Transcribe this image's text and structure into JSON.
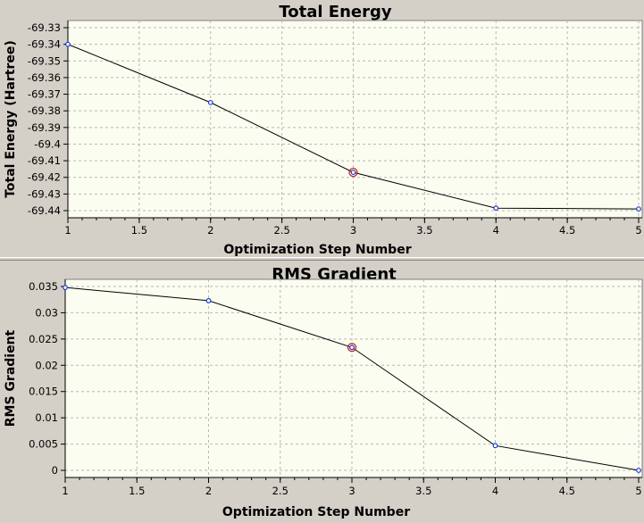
{
  "chart_data": [
    {
      "type": "line",
      "title": "Total Energy",
      "xlabel": "Optimization Step Number",
      "ylabel": "Total Energy (Hartree)",
      "x": [
        1,
        2,
        3,
        4,
        5
      ],
      "y": [
        -69.34,
        -69.375,
        -69.417,
        -69.4385,
        -69.439
      ],
      "highlight_index": 2,
      "xlim": [
        1,
        5
      ],
      "ylim": [
        -69.44,
        -69.33
      ],
      "x_ticks": [
        "1",
        "1.5",
        "2",
        "2.5",
        "3",
        "3.5",
        "4",
        "4.5",
        "5"
      ],
      "y_ticks": [
        "-69.33",
        "-69.34",
        "-69.35",
        "-69.36",
        "-69.37",
        "-69.38",
        "-69.39",
        "-69.4",
        "-69.41",
        "-69.42",
        "-69.43",
        "-69.44"
      ],
      "grid": true
    },
    {
      "type": "line",
      "title": "RMS Gradient",
      "xlabel": "Optimization Step Number",
      "ylabel": "RMS Gradient",
      "x": [
        1,
        2,
        3,
        4,
        5
      ],
      "y": [
        0.0348,
        0.0323,
        0.0234,
        0.0047,
        0.0
      ],
      "highlight_index": 2,
      "xlim": [
        1,
        5
      ],
      "ylim": [
        0,
        0.035
      ],
      "x_ticks": [
        "1",
        "1.5",
        "2",
        "2.5",
        "3",
        "3.5",
        "4",
        "4.5",
        "5"
      ],
      "y_ticks": [
        "0.035",
        "0.03",
        "0.025",
        "0.02",
        "0.015",
        "0.01",
        "0.005",
        "0"
      ],
      "grid": true
    }
  ],
  "colors": {
    "point_stroke": "#1a3ad8",
    "highlight": "#d02020",
    "plot_background": "#fbfdf0",
    "panel_background": "#d4d0c8"
  }
}
